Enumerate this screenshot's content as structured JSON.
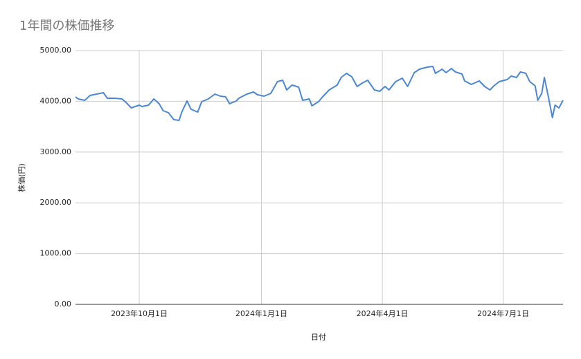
{
  "chart_data": {
    "type": "line",
    "title": "1年間の株価推移",
    "x_label": "日付",
    "y_label": "株価(円)",
    "x": [
      "2023-08-14",
      "2023-08-16",
      "2023-08-21",
      "2023-08-25",
      "2023-08-30",
      "2023-09-04",
      "2023-09-07",
      "2023-09-12",
      "2023-09-18",
      "2023-09-21",
      "2023-09-25",
      "2023-10-01",
      "2023-10-03",
      "2023-10-08",
      "2023-10-12",
      "2023-10-16",
      "2023-10-19",
      "2023-10-23",
      "2023-10-27",
      "2023-10-31",
      "2023-11-02",
      "2023-11-06",
      "2023-11-09",
      "2023-11-14",
      "2023-11-17",
      "2023-11-22",
      "2023-11-27",
      "2023-12-01",
      "2023-12-05",
      "2023-12-08",
      "2023-12-13",
      "2023-12-15",
      "2023-12-21",
      "2023-12-26",
      "2023-12-29",
      "2024-01-03",
      "2024-01-08",
      "2024-01-13",
      "2024-01-17",
      "2024-01-20",
      "2024-01-24",
      "2024-01-29",
      "2024-02-01",
      "2024-02-06",
      "2024-02-08",
      "2024-02-13",
      "2024-02-16",
      "2024-02-21",
      "2024-02-27",
      "2024-03-01",
      "2024-03-05",
      "2024-03-09",
      "2024-03-13",
      "2024-03-17",
      "2024-03-21",
      "2024-03-26",
      "2024-03-30",
      "2024-04-03",
      "2024-04-06",
      "2024-04-11",
      "2024-04-16",
      "2024-04-20",
      "2024-04-25",
      "2024-04-29",
      "2024-05-05",
      "2024-05-09",
      "2024-05-11",
      "2024-05-16",
      "2024-05-19",
      "2024-05-23",
      "2024-05-26",
      "2024-05-31",
      "2024-06-02",
      "2024-06-07",
      "2024-06-13",
      "2024-06-17",
      "2024-06-21",
      "2024-06-24",
      "2024-06-28",
      "2024-07-04",
      "2024-07-07",
      "2024-07-11",
      "2024-07-14",
      "2024-07-18",
      "2024-07-21",
      "2024-07-25",
      "2024-07-27",
      "2024-07-30",
      "2024-08-01",
      "2024-08-04",
      "2024-08-07",
      "2024-08-09",
      "2024-08-12",
      "2024-08-15"
    ],
    "series": [
      {
        "name": "株価",
        "color": "#4a86d4",
        "values": [
          4087,
          4046,
          4019,
          4114,
          4142,
          4169,
          4060,
          4060,
          4046,
          3978,
          3869,
          3924,
          3896,
          3924,
          4046,
          3951,
          3815,
          3774,
          3638,
          3624,
          3787,
          4005,
          3842,
          3787,
          3992,
          4046,
          4142,
          4101,
          4087,
          3951,
          4005,
          4060,
          4142,
          4183,
          4128,
          4101,
          4155,
          4387,
          4414,
          4223,
          4319,
          4278,
          4019,
          4046,
          3910,
          3992,
          4087,
          4223,
          4319,
          4469,
          4550,
          4482,
          4292,
          4360,
          4414,
          4223,
          4196,
          4292,
          4223,
          4387,
          4455,
          4292,
          4564,
          4632,
          4673,
          4687,
          4550,
          4632,
          4564,
          4646,
          4578,
          4537,
          4401,
          4332,
          4401,
          4292,
          4223,
          4305,
          4387,
          4428,
          4496,
          4469,
          4578,
          4550,
          4387,
          4305,
          4019,
          4155,
          4469,
          4087,
          3678,
          3924,
          3869,
          4019
        ]
      }
    ],
    "xlim": [
      "2023-08-14",
      "2024-08-15"
    ],
    "xticks": [
      {
        "value": "2023-10-01",
        "label": "2023年10月1日"
      },
      {
        "value": "2024-01-01",
        "label": "2024年1月1日"
      },
      {
        "value": "2024-04-01",
        "label": "2024年4月1日"
      },
      {
        "value": "2024-07-01",
        "label": "2024年7月1日"
      }
    ],
    "ylim": [
      0,
      5000
    ],
    "yticks": [
      {
        "value": 0,
        "label": "0.00"
      },
      {
        "value": 1000,
        "label": "1000.00"
      },
      {
        "value": 2000,
        "label": "2000.00"
      },
      {
        "value": 3000,
        "label": "3000.00"
      },
      {
        "value": 4000,
        "label": "4000.00"
      },
      {
        "value": 5000,
        "label": "5000.00"
      }
    ],
    "grid": true
  }
}
